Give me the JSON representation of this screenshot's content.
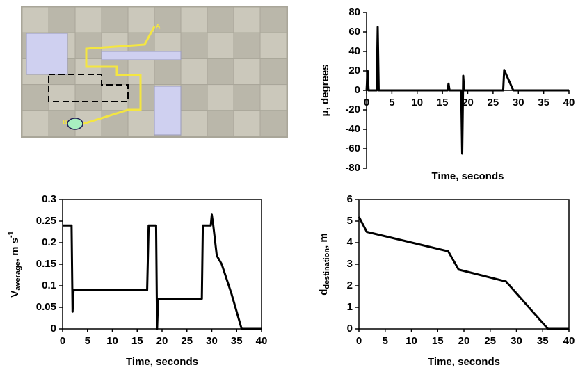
{
  "map": {
    "end_label": "A",
    "start_label": "B"
  },
  "chart_data": [
    {
      "type": "line",
      "x_label": "Time, seconds",
      "y_label": "μ, degrees",
      "color": "#000000",
      "x": [
        0,
        0.2,
        0.4,
        2,
        2.2,
        2.4,
        16,
        16.2,
        16.4,
        18.7,
        18.9,
        19.1,
        19.3,
        27,
        27.2,
        29,
        40
      ],
      "values": [
        0,
        20,
        0,
        0,
        65,
        0,
        0,
        7,
        0,
        0,
        -65,
        15,
        0,
        0,
        21,
        0,
        0
      ],
      "xlim": [
        0,
        40
      ],
      "xticks": [
        0,
        5,
        10,
        15,
        20,
        25,
        30,
        35,
        40
      ],
      "ylim": [
        -80,
        80
      ],
      "yticks": [
        -80,
        -60,
        -40,
        -20,
        0,
        20,
        40,
        60,
        80
      ],
      "frame": false
    },
    {
      "type": "line",
      "x_label": "Time, seconds",
      "y_label": {
        "main": "V",
        "sub": "average",
        "rest": ", m s",
        "sup": "-1"
      },
      "color": "#000000",
      "x": [
        0,
        1.8,
        2,
        2.2,
        17,
        17.3,
        18.8,
        19,
        19.2,
        28,
        28.2,
        29.8,
        30,
        30.3,
        31,
        32,
        34,
        35,
        36,
        40
      ],
      "values": [
        0.24,
        0.24,
        0.04,
        0.09,
        0.09,
        0.24,
        0.24,
        0,
        0.07,
        0.07,
        0.24,
        0.24,
        0.265,
        0.24,
        0.17,
        0.15,
        0.08,
        0.04,
        0,
        0
      ],
      "xlim": [
        0,
        40
      ],
      "xticks": [
        0,
        5,
        10,
        15,
        20,
        25,
        30,
        35,
        40
      ],
      "ylim": [
        0,
        0.3
      ],
      "yticks": [
        0,
        0.05,
        0.1,
        0.15,
        0.2,
        0.25,
        0.3
      ],
      "frame": true
    },
    {
      "type": "line",
      "x_label": "Time, seconds",
      "y_label": {
        "main": "d",
        "sub": "destination",
        "rest": ", m"
      },
      "color": "#000000",
      "x": [
        0,
        1.5,
        17,
        19,
        28,
        36,
        40
      ],
      "values": [
        5.2,
        4.5,
        3.6,
        2.75,
        2.2,
        0,
        0
      ],
      "xlim": [
        0,
        40
      ],
      "xticks": [
        0,
        5,
        10,
        15,
        20,
        25,
        30,
        35,
        40
      ],
      "ylim": [
        0,
        6
      ],
      "yticks": [
        0,
        1,
        2,
        3,
        4,
        5,
        6
      ],
      "frame": true
    }
  ]
}
